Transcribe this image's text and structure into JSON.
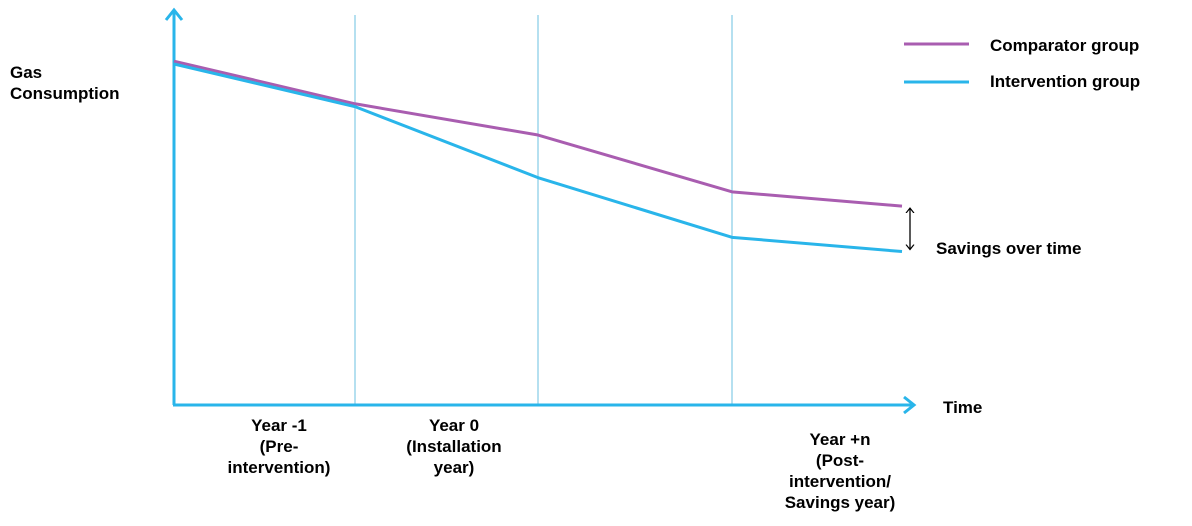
{
  "chart_data": {
    "type": "line",
    "ylabel": [
      "Gas",
      "Consumption"
    ],
    "xlabel": "Time",
    "x_ticks": [
      [
        "Year -1",
        "(Pre-",
        "intervention)"
      ],
      [
        "Year 0",
        "(Installation",
        "year)"
      ],
      [
        "Year +n",
        "(Post-",
        "intervention/",
        "Savings year)"
      ]
    ],
    "x_boundaries": [
      0,
      1,
      2,
      3,
      4
    ],
    "series": [
      {
        "name": "Comparator group",
        "color": "#a95db0",
        "points": [
          [
            0,
            100
          ],
          [
            1,
            85
          ],
          [
            2,
            74
          ],
          [
            3,
            54
          ],
          [
            4,
            49
          ]
        ]
      },
      {
        "name": "Intervention group",
        "color": "#29b5ea",
        "points": [
          [
            0,
            99
          ],
          [
            1,
            84
          ],
          [
            2,
            59
          ],
          [
            3,
            38
          ],
          [
            4,
            33
          ]
        ]
      }
    ],
    "ylim": [
      -21,
      118
    ],
    "annotation": "Savings over time",
    "legend_position": "top-right",
    "axis_color": "#29b5ea",
    "divider_color": "#b5e0f0"
  }
}
